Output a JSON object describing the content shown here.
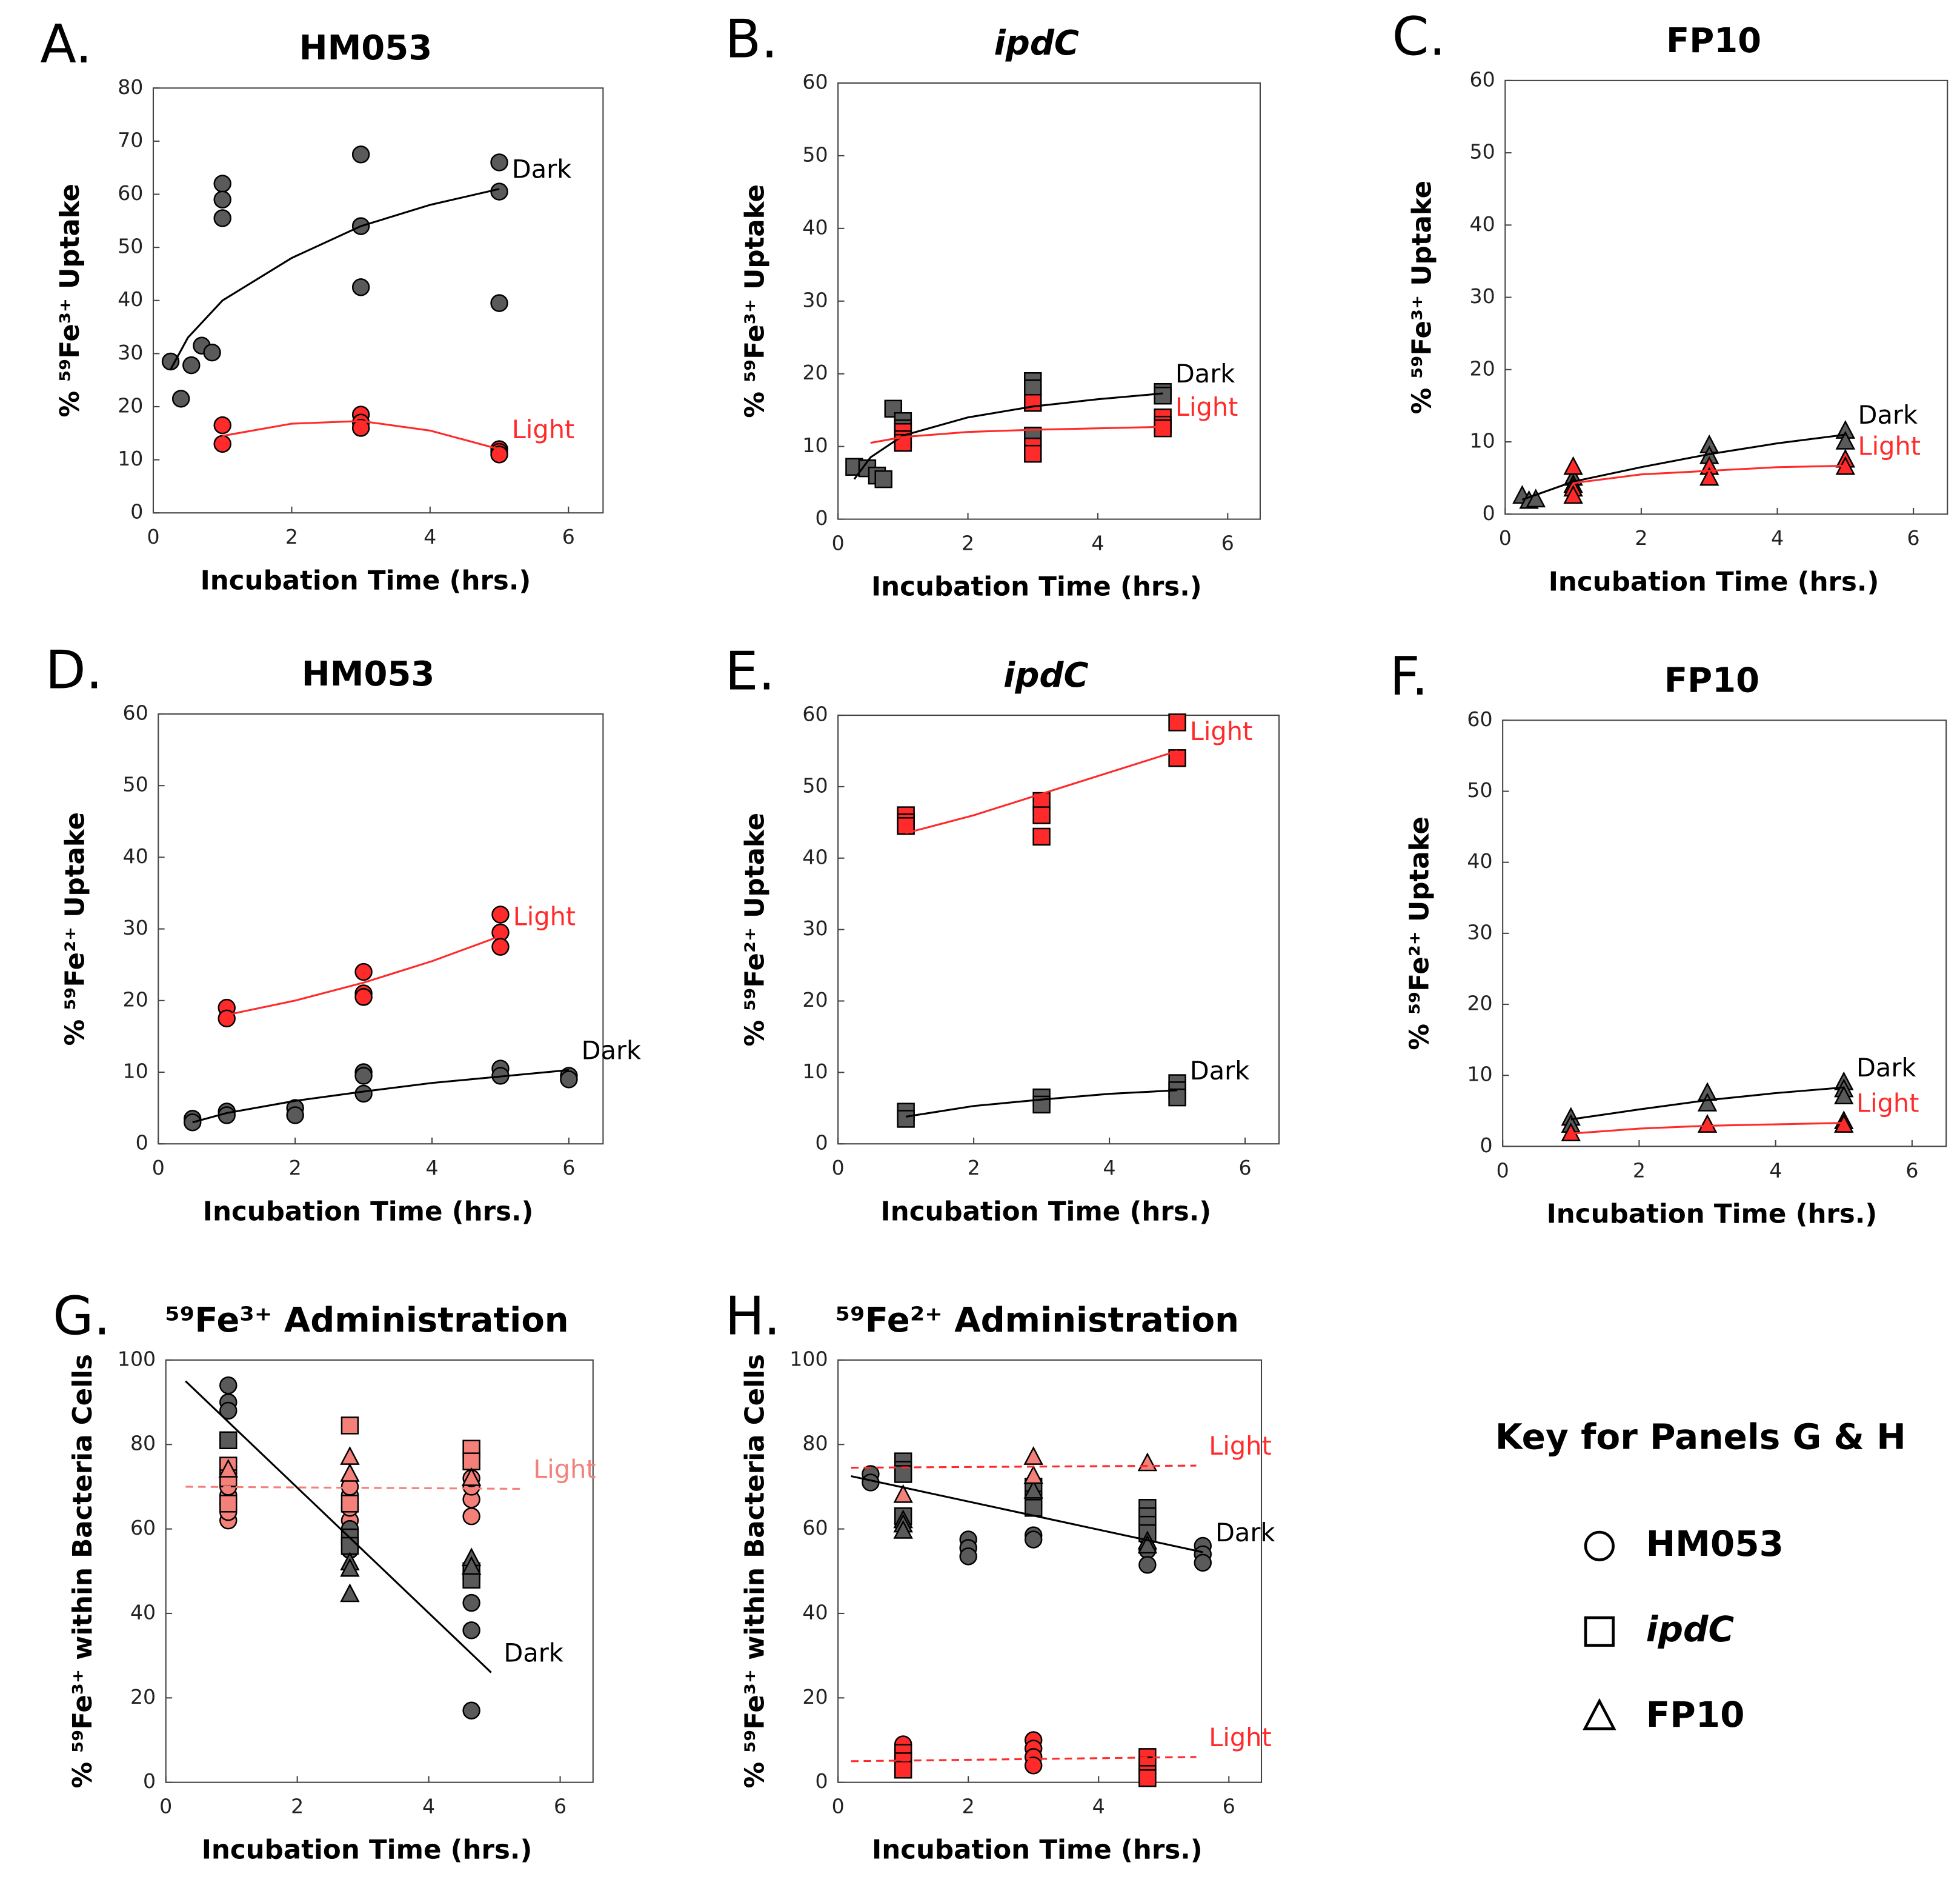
{
  "chart_data": [
    {
      "type": "scatter",
      "panel": "A.",
      "title": "HM053",
      "x_label": "Incubation Time (hrs.)",
      "y_label": "% ⁵⁹Fe³⁺ Uptake",
      "xlim": [
        0,
        6.5
      ],
      "xticks": [
        0,
        2,
        4,
        6
      ],
      "ylim": [
        0,
        80
      ],
      "yticks": [
        0,
        10,
        20,
        30,
        40,
        50,
        60,
        70,
        80
      ],
      "series": [
        {
          "marker": "circle",
          "color": "#5a5a5a",
          "x": [
            0.25,
            0.4,
            0.55,
            0.7,
            0.85,
            1,
            1,
            1,
            3,
            3,
            3,
            5,
            5,
            5
          ],
          "values": [
            28.5,
            21.5,
            27.8,
            31.5,
            30.2,
            62,
            59,
            55.5,
            67.5,
            54,
            42.5,
            66,
            60.5,
            39.5
          ]
        },
        {
          "marker": "circle",
          "color": "#ff2a2a",
          "x": [
            1,
            1,
            3,
            3,
            3,
            5,
            5,
            5
          ],
          "values": [
            16.5,
            13,
            18.5,
            17,
            16,
            12,
            11.5,
            11
          ]
        }
      ],
      "fits": [
        {
          "name": "Dark",
          "color": "#000000",
          "dashed": false,
          "x": [
            0.25,
            0.5,
            1,
            2,
            3,
            4,
            5
          ],
          "values": [
            27,
            33,
            40,
            48,
            54,
            58,
            61
          ]
        },
        {
          "name": "Light",
          "color": "#ff2a2a",
          "dashed": false,
          "x": [
            1,
            2,
            3,
            4,
            5
          ],
          "values": [
            14.5,
            16.8,
            17.3,
            15.5,
            12
          ]
        }
      ]
    },
    {
      "type": "scatter",
      "panel": "B.",
      "title": "ipdC",
      "title_italic": true,
      "x_label": "Incubation Time (hrs.)",
      "y_label": "% ⁵⁹Fe³⁺ Uptake",
      "xlim": [
        0,
        6.5
      ],
      "xticks": [
        0,
        2,
        4,
        6
      ],
      "ylim": [
        0,
        60
      ],
      "yticks": [
        0,
        10,
        20,
        30,
        40,
        50,
        60
      ],
      "series": [
        {
          "marker": "square",
          "color": "#5a5a5a",
          "x": [
            0.25,
            0.45,
            0.6,
            0.7,
            0.85,
            1,
            1,
            3,
            3,
            3,
            5,
            5
          ],
          "values": [
            7.2,
            7,
            6,
            5.5,
            15.2,
            13.5,
            12.5,
            19,
            18,
            11.5,
            17.5,
            17
          ]
        },
        {
          "marker": "square",
          "color": "#ff2a2a",
          "x": [
            1,
            1,
            1,
            3,
            3,
            3,
            5,
            5,
            5
          ],
          "values": [
            12,
            11,
            10.5,
            16,
            10,
            9,
            14,
            13,
            12.5
          ]
        }
      ],
      "fits": [
        {
          "name": "Dark",
          "color": "#000000",
          "dashed": false,
          "x": [
            0.25,
            0.5,
            1,
            2,
            3,
            4,
            5
          ],
          "values": [
            5.5,
            8.5,
            11.5,
            14,
            15.5,
            16.5,
            17.3
          ]
        },
        {
          "name": "Light",
          "color": "#ff2a2a",
          "dashed": false,
          "x": [
            0.5,
            1,
            2,
            3,
            4,
            5
          ],
          "values": [
            10.5,
            11.3,
            12,
            12.3,
            12.5,
            12.7
          ]
        }
      ]
    },
    {
      "type": "scatter",
      "panel": "C.",
      "title": "FP10",
      "x_label": "Incubation Time (hrs.)",
      "y_label": "% ⁵⁹Fe³⁺ Uptake",
      "xlim": [
        0,
        6.5
      ],
      "xticks": [
        0,
        2,
        4,
        6
      ],
      "ylim": [
        0,
        60
      ],
      "yticks": [
        0,
        10,
        20,
        30,
        40,
        50,
        60
      ],
      "series": [
        {
          "marker": "triangle",
          "color": "#5a5a5a",
          "x": [
            0.25,
            0.35,
            0.45,
            1,
            1,
            3,
            3,
            5,
            5,
            5
          ],
          "values": [
            2.5,
            1.8,
            2,
            5,
            4,
            9.5,
            8,
            11.5,
            10,
            7.5
          ]
        },
        {
          "marker": "triangle",
          "color": "#ff2a2a",
          "x": [
            1,
            1,
            1,
            3,
            3,
            5,
            5
          ],
          "values": [
            6.5,
            3.5,
            2.5,
            6.5,
            5,
            7.5,
            6.5
          ]
        }
      ],
      "fits": [
        {
          "name": "Dark",
          "color": "#000000",
          "dashed": false,
          "x": [
            0.25,
            1,
            2,
            3,
            4,
            5
          ],
          "values": [
            2,
            4.5,
            6.5,
            8.3,
            9.8,
            11
          ]
        },
        {
          "name": "Light",
          "color": "#ff2a2a",
          "dashed": false,
          "x": [
            1,
            2,
            3,
            4,
            5
          ],
          "values": [
            4.3,
            5.5,
            6,
            6.5,
            6.7
          ]
        }
      ]
    },
    {
      "type": "scatter",
      "panel": "D.",
      "title": "HM053",
      "x_label": "Incubation Time (hrs.)",
      "y_label": "% ⁵⁹Fe²⁺ Uptake",
      "xlim": [
        0,
        6.5
      ],
      "xticks": [
        0,
        2,
        4,
        6
      ],
      "ylim": [
        0,
        60
      ],
      "yticks": [
        0,
        10,
        20,
        30,
        40,
        50,
        60
      ],
      "series": [
        {
          "marker": "circle",
          "color": "#ff2a2a",
          "x": [
            1,
            1,
            3,
            3,
            3,
            5,
            5,
            5
          ],
          "values": [
            19,
            17.5,
            24,
            21,
            20.5,
            32,
            29.5,
            27.5
          ]
        },
        {
          "marker": "circle",
          "color": "#5a5a5a",
          "x": [
            0.5,
            0.5,
            1,
            1,
            2,
            2,
            3,
            3,
            3,
            5,
            5,
            6,
            6
          ],
          "values": [
            3.5,
            3,
            4.5,
            4,
            5,
            4,
            10,
            9.5,
            7,
            10.5,
            9.5,
            9.5,
            9
          ]
        }
      ],
      "fits": [
        {
          "name": "Light",
          "color": "#ff2a2a",
          "dashed": false,
          "x": [
            1,
            2,
            3,
            4,
            5
          ],
          "values": [
            18,
            20,
            22.5,
            25.5,
            29
          ]
        },
        {
          "name": "Dark",
          "color": "#000000",
          "dashed": false,
          "x": [
            0.5,
            1,
            2,
            3,
            4,
            5,
            6
          ],
          "values": [
            3,
            4.3,
            6,
            7.3,
            8.5,
            9.4,
            10.3
          ]
        }
      ]
    },
    {
      "type": "scatter",
      "panel": "E.",
      "title": "ipdC",
      "title_italic": true,
      "x_label": "Incubation Time (hrs.)",
      "y_label": "% ⁵⁹Fe²⁺ Uptake",
      "xlim": [
        0,
        6.5
      ],
      "xticks": [
        0,
        2,
        4,
        6
      ],
      "ylim": [
        0,
        60
      ],
      "yticks": [
        0,
        10,
        20,
        30,
        40,
        50,
        60
      ],
      "series": [
        {
          "marker": "square",
          "color": "#ff2a2a",
          "x": [
            1,
            1,
            1,
            3,
            3,
            3,
            5,
            5
          ],
          "values": [
            46,
            45,
            44.5,
            48,
            46,
            43,
            59,
            54
          ]
        },
        {
          "marker": "square",
          "color": "#5a5a5a",
          "x": [
            1,
            1,
            3,
            3,
            5,
            5,
            5
          ],
          "values": [
            4.5,
            3.5,
            6.5,
            5.5,
            8.5,
            7.5,
            6.5
          ]
        }
      ],
      "fits": [
        {
          "name": "Light",
          "color": "#ff2a2a",
          "dashed": false,
          "x": [
            1,
            2,
            3,
            4,
            5
          ],
          "values": [
            43.5,
            46,
            49,
            52,
            55
          ]
        },
        {
          "name": "Dark",
          "color": "#000000",
          "dashed": false,
          "x": [
            1,
            2,
            3,
            4,
            5
          ],
          "values": [
            3.8,
            5.3,
            6.2,
            7,
            7.5
          ]
        }
      ]
    },
    {
      "type": "scatter",
      "panel": "F.",
      "title": "FP10",
      "x_label": "Incubation Time (hrs.)",
      "y_label": "% ⁵⁹Fe²⁺ Uptake",
      "xlim": [
        0,
        6.5
      ],
      "xticks": [
        0,
        2,
        4,
        6
      ],
      "ylim": [
        0,
        60
      ],
      "yticks": [
        0,
        10,
        20,
        30,
        40,
        50,
        60
      ],
      "series": [
        {
          "marker": "triangle",
          "color": "#5a5a5a",
          "x": [
            1,
            1,
            3,
            3,
            5,
            5,
            5
          ],
          "values": [
            4,
            3,
            7.5,
            6,
            9,
            8,
            7
          ]
        },
        {
          "marker": "triangle",
          "color": "#ff2a2a",
          "x": [
            1,
            3,
            5,
            5
          ],
          "values": [
            1.8,
            3,
            3.5,
            3
          ]
        }
      ],
      "fits": [
        {
          "name": "Dark",
          "color": "#000000",
          "dashed": false,
          "x": [
            1,
            2,
            3,
            4,
            5
          ],
          "values": [
            3.8,
            5.2,
            6.5,
            7.5,
            8.3
          ]
        },
        {
          "name": "Light",
          "color": "#ff2a2a",
          "dashed": false,
          "x": [
            1,
            2,
            3,
            4,
            5
          ],
          "values": [
            1.8,
            2.5,
            2.9,
            3.1,
            3.3
          ]
        }
      ]
    },
    {
      "type": "scatter",
      "panel": "G.",
      "title": "⁵⁹Fe³⁺ Administration",
      "x_label": "Incubation Time (hrs.)",
      "y_label": "% ⁵⁹Fe³⁺ within Bacteria Cells",
      "xlim": [
        0,
        6.5
      ],
      "xticks": [
        0,
        2,
        4,
        6
      ],
      "ylim": [
        0,
        100
      ],
      "yticks": [
        0,
        20,
        40,
        60,
        80,
        100
      ],
      "series": [
        {
          "marker": "circle",
          "color": "#f4807a",
          "x": [
            0.95,
            0.95,
            0.95,
            0.95,
            0.95,
            2.8,
            2.8,
            2.8,
            2.8,
            4.65,
            4.65,
            4.65,
            4.65
          ],
          "values": [
            62,
            64,
            66,
            68,
            70,
            62,
            65,
            68,
            70,
            63,
            67,
            70,
            72
          ]
        },
        {
          "marker": "square",
          "color": "#f4807a",
          "x": [
            0.95,
            0.95,
            0.95,
            2.8,
            2.8,
            4.65,
            4.65
          ],
          "values": [
            75,
            72,
            66,
            84.5,
            66,
            79,
            76
          ]
        },
        {
          "marker": "triangle",
          "color": "#f4807a",
          "x": [
            0.95,
            2.8,
            2.8,
            4.65
          ],
          "values": [
            74,
            77,
            73,
            72
          ]
        },
        {
          "marker": "circle",
          "color": "#5a5a5a",
          "x": [
            0.95,
            0.95,
            0.95,
            2.8,
            2.8,
            4.65,
            4.65,
            4.65
          ],
          "values": [
            94,
            90,
            88,
            60,
            55,
            42.5,
            36,
            17
          ]
        },
        {
          "marker": "square",
          "color": "#5a5a5a",
          "x": [
            0.95,
            2.8,
            2.8,
            4.65,
            4.65
          ],
          "values": [
            81,
            58,
            56,
            50,
            48
          ]
        },
        {
          "marker": "triangle",
          "color": "#5a5a5a",
          "x": [
            2.8,
            2.8,
            2.8,
            4.65,
            4.65
          ],
          "values": [
            44.5,
            52,
            50.5,
            53,
            51
          ]
        }
      ],
      "fits": [
        {
          "name": "Light",
          "color": "#f4807a",
          "dashed": true,
          "x": [
            0.3,
            5.4
          ],
          "values": [
            70,
            69.5
          ]
        },
        {
          "name": "Dark",
          "color": "#000000",
          "dashed": false,
          "x": [
            0.3,
            4.95
          ],
          "values": [
            95,
            26
          ]
        }
      ]
    },
    {
      "type": "scatter",
      "panel": "H.",
      "title": "⁵⁹Fe²⁺ Administration",
      "x_label": "Incubation Time (hrs.)",
      "y_label": "% ⁵⁹Fe³⁺  within Bacteria Cells",
      "xlim": [
        0,
        6.5
      ],
      "xticks": [
        0,
        2,
        4,
        6
      ],
      "ylim": [
        0,
        100
      ],
      "yticks": [
        0,
        20,
        40,
        60,
        80,
        100
      ],
      "series": [
        {
          "marker": "circle",
          "color": "#5a5a5a",
          "x": [
            0.5,
            0.5,
            2,
            2,
            2,
            3,
            3,
            4.75,
            4.75,
            4.75,
            5.6,
            5.6,
            5.6
          ],
          "values": [
            73,
            71,
            57.5,
            55.5,
            53.5,
            58.5,
            57.5,
            58,
            55,
            51.5,
            56,
            54,
            52
          ]
        },
        {
          "marker": "square",
          "color": "#5a5a5a",
          "x": [
            1,
            1,
            1,
            1,
            3,
            3,
            3,
            4.75,
            4.75,
            4.75,
            4.75
          ],
          "values": [
            76,
            74,
            73,
            63,
            70,
            67,
            65,
            65,
            63,
            61,
            59
          ]
        },
        {
          "marker": "triangle",
          "color": "#5a5a5a",
          "x": [
            1,
            1,
            1,
            3,
            4.75,
            4.75
          ],
          "values": [
            62,
            61,
            59.5,
            69,
            57,
            56
          ]
        },
        {
          "marker": "triangle",
          "color": "#f4807a",
          "x": [
            1,
            3,
            3,
            4.75
          ],
          "values": [
            68,
            77,
            72.5,
            75.5
          ]
        },
        {
          "marker": "circle",
          "color": "#ff2a2a",
          "x": [
            1,
            1,
            1,
            3,
            3,
            3,
            3,
            4.75
          ],
          "values": [
            9,
            7,
            5,
            10,
            8,
            6,
            4,
            3
          ]
        },
        {
          "marker": "square",
          "color": "#ff2a2a",
          "x": [
            1,
            1,
            1,
            4.75,
            4.75,
            4.75,
            4.75
          ],
          "values": [
            7,
            5,
            3,
            6,
            4,
            2,
            1
          ]
        }
      ],
      "fits": [
        {
          "name": "Light",
          "color": "#ff2a2a",
          "dashed": true,
          "x": [
            0.2,
            5.5
          ],
          "values": [
            74.5,
            75
          ]
        },
        {
          "name": "Dark",
          "color": "#000000",
          "dashed": false,
          "x": [
            0.2,
            5.6
          ],
          "values": [
            72.5,
            54.5
          ]
        },
        {
          "name": "Light",
          "color": "#ff2a2a",
          "dashed": true,
          "x": [
            0.2,
            5.5
          ],
          "values": [
            5,
            6
          ]
        }
      ]
    }
  ],
  "key": {
    "title": "Key for Panels G & H",
    "entries": [
      {
        "marker": "circle",
        "label": "HM053",
        "italic": false
      },
      {
        "marker": "square",
        "label": "ipdC",
        "italic": true
      },
      {
        "marker": "triangle",
        "label": "FP10",
        "italic": false
      }
    ]
  }
}
